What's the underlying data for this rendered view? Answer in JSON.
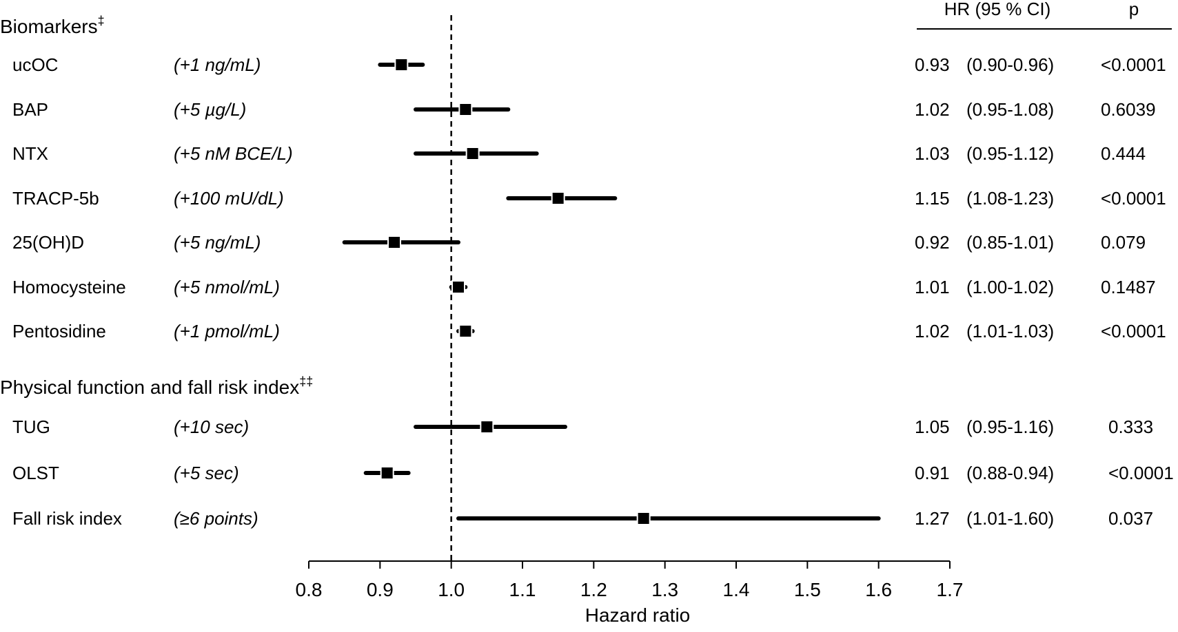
{
  "chart_data": {
    "type": "forest",
    "xlabel": "Hazard ratio",
    "xlim": [
      0.8,
      1.7
    ],
    "xticks": [
      "0.8",
      "0.9",
      "1.0",
      "1.1",
      "1.2",
      "1.3",
      "1.4",
      "1.5",
      "1.6",
      "1.7"
    ],
    "reference_line": 1.0,
    "columns": {
      "hr": "HR (95 % CI)",
      "p": "p"
    },
    "sections": [
      {
        "title": "Biomarkers",
        "marker": "‡",
        "rows": [
          {
            "label": "ucOC",
            "unit": "(+1 ng/mL)",
            "hr": 0.93,
            "lo": 0.9,
            "hi": 0.96,
            "hr_text": "0.93",
            "ci_text": "(0.90-0.96)",
            "p": "<0.0001"
          },
          {
            "label": "BAP",
            "unit": "(+5 µg/L)",
            "hr": 1.02,
            "lo": 0.95,
            "hi": 1.08,
            "hr_text": "1.02",
            "ci_text": "(0.95-1.08)",
            "p": "0.6039"
          },
          {
            "label": "NTX",
            "unit": "(+5 nM BCE/L)",
            "hr": 1.03,
            "lo": 0.95,
            "hi": 1.12,
            "hr_text": "1.03",
            "ci_text": "(0.95-1.12)",
            "p": "0.444"
          },
          {
            "label": "TRACP-5b",
            "unit": "(+100 mU/dL)",
            "hr": 1.15,
            "lo": 1.08,
            "hi": 1.23,
            "hr_text": "1.15",
            "ci_text": "(1.08-1.23)",
            "p": "<0.0001"
          },
          {
            "label": "25(OH)D",
            "unit": "(+5 ng/mL)",
            "hr": 0.92,
            "lo": 0.85,
            "hi": 1.01,
            "hr_text": "0.92",
            "ci_text": "(0.85-1.01)",
            "p": "0.079"
          },
          {
            "label": "Homocysteine",
            "unit": "(+5 nmol/mL)",
            "hr": 1.01,
            "lo": 1.0,
            "hi": 1.02,
            "hr_text": "1.01",
            "ci_text": "(1.00-1.02)",
            "p": "0.1487"
          },
          {
            "label": "Pentosidine",
            "unit": "(+1 pmol/mL)",
            "hr": 1.02,
            "lo": 1.01,
            "hi": 1.03,
            "hr_text": "1.02",
            "ci_text": "(1.01-1.03)",
            "p": "<0.0001"
          }
        ]
      },
      {
        "title": "Physical function and fall risk index",
        "marker": "‡‡",
        "rows": [
          {
            "label": "TUG",
            "unit": "(+10 sec)",
            "hr": 1.05,
            "lo": 0.95,
            "hi": 1.16,
            "hr_text": "1.05",
            "ci_text": "(0.95-1.16)",
            "p": "0.333"
          },
          {
            "label": "OLST",
            "unit": "(+5 sec)",
            "hr": 0.91,
            "lo": 0.88,
            "hi": 0.94,
            "hr_text": "0.91",
            "ci_text": "(0.88-0.94)",
            "p": "<0.0001"
          },
          {
            "label": "Fall risk index",
            "unit": "(≥6 points)",
            "hr": 1.27,
            "lo": 1.01,
            "hi": 1.6,
            "hr_text": "1.27",
            "ci_text": "(1.01-1.60)",
            "p": "0.037"
          }
        ]
      }
    ]
  }
}
